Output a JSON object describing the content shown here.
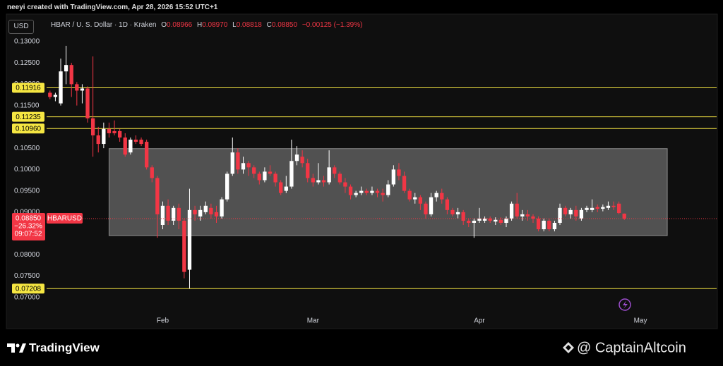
{
  "chart_data": {
    "type": "candlestick",
    "header": "neeyi created with TradingView.com, Apr 28, 2026 15:52 UTC+1",
    "currency": "USD",
    "title": "HBAR / U. S. Dollar · 1D · Kraken",
    "legend": {
      "keys": [
        "O",
        "H",
        "L",
        "C"
      ],
      "open": 0.08966,
      "high": {
        "value": 0.0897,
        "label": "0.08970"
      },
      "low": 0.08818,
      "close": {
        "value": 0.0885,
        "label": "0.08850"
      },
      "change": {
        "value": -0.00125,
        "label": "−0.00125"
      },
      "change_pct": {
        "value": -1.39,
        "label": "(−1.39%)"
      }
    },
    "up_color": "#ffffff",
    "down_color": "#f23645",
    "open": [
      0.118,
      0.117,
      0.1155,
      0.123,
      0.1245,
      0.12,
      0.1185,
      0.119,
      0.112,
      0.108,
      0.106,
      0.1095,
      0.109,
      0.109,
      0.1075,
      0.104,
      0.107,
      0.107,
      0.1065,
      0.1005,
      0.098,
      0.087,
      0.0915,
      0.088,
      0.091,
      0.088,
      0.0765,
      0.0905,
      0.089,
      0.09,
      0.091,
      0.09,
      0.089,
      0.093,
      0.099,
      0.104,
      0.1,
      0.1015,
      0.1005,
      0.099,
      0.0975,
      0.0995,
      0.099,
      0.097,
      0.095,
      0.096,
      0.102,
      0.103,
      0.1015,
      0.098,
      0.097,
      0.0975,
      0.097,
      0.1005,
      0.099,
      0.097,
      0.096,
      0.094,
      0.0945,
      0.095,
      0.0945,
      0.095,
      0.0945,
      0.094,
      0.0965,
      0.1,
      0.0985,
      0.095,
      0.093,
      0.0935,
      0.092,
      0.0895,
      0.0935,
      0.0945,
      0.093,
      0.0905,
      0.0895,
      0.09,
      0.088,
      0.0875,
      0.088,
      0.088,
      0.0885,
      0.0878,
      0.0882,
      0.0875,
      0.0885,
      0.092,
      0.089,
      0.0895,
      0.089,
      0.0885,
      0.086,
      0.088,
      0.086,
      0.0875,
      0.091,
      0.0895,
      0.0905,
      0.0885,
      0.0905,
      0.0905,
      0.0912,
      0.0908,
      0.091,
      0.0915,
      0.092,
      0.08966
    ],
    "high": [
      0.1185,
      0.118,
      0.126,
      0.129,
      0.125,
      0.1205,
      0.12,
      0.1195,
      0.1265,
      0.11,
      0.111,
      0.111,
      0.1115,
      0.1095,
      0.1085,
      0.1075,
      0.108,
      0.1075,
      0.107,
      0.101,
      0.0985,
      0.0925,
      0.093,
      0.0915,
      0.092,
      0.0885,
      0.0955,
      0.0915,
      0.0915,
      0.0925,
      0.092,
      0.0915,
      0.0935,
      0.0995,
      0.1075,
      0.105,
      0.103,
      0.102,
      0.101,
      0.0995,
      0.1005,
      0.101,
      0.0995,
      0.0975,
      0.0985,
      0.107,
      0.1055,
      0.1045,
      0.1025,
      0.099,
      0.1015,
      0.0985,
      0.1045,
      0.101,
      0.0995,
      0.098,
      0.0965,
      0.095,
      0.096,
      0.0955,
      0.096,
      0.0955,
      0.0955,
      0.0975,
      0.101,
      0.1015,
      0.0995,
      0.0955,
      0.0945,
      0.094,
      0.0925,
      0.0945,
      0.095,
      0.0955,
      0.0935,
      0.091,
      0.091,
      0.0905,
      0.0885,
      0.0885,
      0.091,
      0.089,
      0.089,
      0.0888,
      0.0888,
      0.089,
      0.0925,
      0.0945,
      0.0905,
      0.0905,
      0.0895,
      0.089,
      0.0885,
      0.0885,
      0.088,
      0.092,
      0.0915,
      0.091,
      0.0915,
      0.091,
      0.0915,
      0.093,
      0.0918,
      0.0918,
      0.0925,
      0.0925,
      0.0925,
      0.0897
    ],
    "low": [
      0.1165,
      0.116,
      0.115,
      0.12,
      0.117,
      0.115,
      0.1155,
      0.111,
      0.103,
      0.104,
      0.105,
      0.1075,
      0.108,
      0.1065,
      0.103,
      0.1035,
      0.106,
      0.1055,
      0.1,
      0.097,
      0.084,
      0.086,
      0.087,
      0.087,
      0.086,
      0.0745,
      0.0721,
      0.088,
      0.088,
      0.0895,
      0.0885,
      0.0875,
      0.0885,
      0.0925,
      0.0985,
      0.099,
      0.099,
      0.0985,
      0.098,
      0.0965,
      0.097,
      0.0985,
      0.096,
      0.094,
      0.0945,
      0.0955,
      0.101,
      0.1005,
      0.097,
      0.096,
      0.0965,
      0.096,
      0.0965,
      0.098,
      0.0965,
      0.0945,
      0.093,
      0.0935,
      0.094,
      0.094,
      0.094,
      0.0935,
      0.0925,
      0.0935,
      0.096,
      0.0975,
      0.0945,
      0.0925,
      0.092,
      0.0905,
      0.0885,
      0.089,
      0.0925,
      0.092,
      0.0895,
      0.089,
      0.0885,
      0.087,
      0.0865,
      0.084,
      0.0875,
      0.0875,
      0.0875,
      0.087,
      0.087,
      0.0865,
      0.088,
      0.0885,
      0.088,
      0.088,
      0.0875,
      0.0855,
      0.0855,
      0.0855,
      0.0855,
      0.087,
      0.089,
      0.0885,
      0.088,
      0.088,
      0.09,
      0.09,
      0.09,
      0.0902,
      0.0905,
      0.0905,
      0.0895,
      0.08818
    ],
    "close": [
      0.117,
      0.1175,
      0.123,
      0.1245,
      0.12,
      0.1185,
      0.119,
      0.112,
      0.108,
      0.106,
      0.1095,
      0.1085,
      0.1085,
      0.1075,
      0.1035,
      0.107,
      0.1065,
      0.106,
      0.1005,
      0.098,
      0.0895,
      0.0915,
      0.088,
      0.091,
      0.088,
      0.076,
      0.0905,
      0.0895,
      0.0905,
      0.0915,
      0.0895,
      0.089,
      0.093,
      0.099,
      0.104,
      0.1,
      0.1015,
      0.1005,
      0.099,
      0.0975,
      0.0995,
      0.099,
      0.097,
      0.0945,
      0.096,
      0.102,
      0.1035,
      0.1015,
      0.098,
      0.097,
      0.0975,
      0.097,
      0.1005,
      0.099,
      0.097,
      0.096,
      0.094,
      0.0945,
      0.095,
      0.0945,
      0.095,
      0.0945,
      0.094,
      0.0965,
      0.1,
      0.0985,
      0.095,
      0.093,
      0.0935,
      0.092,
      0.0895,
      0.0935,
      0.0945,
      0.093,
      0.0905,
      0.0895,
      0.09,
      0.088,
      0.0875,
      0.088,
      0.0885,
      0.0885,
      0.088,
      0.0882,
      0.0875,
      0.0885,
      0.092,
      0.089,
      0.0895,
      0.089,
      0.0885,
      0.086,
      0.088,
      0.086,
      0.0875,
      0.091,
      0.0895,
      0.0905,
      0.089,
      0.0905,
      0.091,
      0.091,
      0.0908,
      0.0912,
      0.0915,
      0.0912,
      0.0898,
      0.0885
    ],
    "xlim": [
      -8,
      124.2
    ],
    "xticks": [
      {
        "value": 21,
        "label": "Feb"
      },
      {
        "value": 49,
        "label": "Mar"
      },
      {
        "value": 80,
        "label": "Apr"
      },
      {
        "value": 110,
        "label": "May"
      }
    ],
    "ylim": [
      0.067,
      0.1318
    ],
    "yticks": [
      {
        "value": 0.07,
        "label": "0.07000"
      },
      {
        "value": 0.075,
        "label": "0.07500"
      },
      {
        "value": 0.08,
        "label": "0.08000"
      },
      {
        "value": 0.085,
        "label": "0.08500"
      },
      {
        "value": 0.09,
        "label": "0.09000"
      },
      {
        "value": 0.095,
        "label": "0.09500"
      },
      {
        "value": 0.1,
        "label": "0.10000"
      },
      {
        "value": 0.105,
        "label": "0.10500"
      },
      {
        "value": 0.11,
        "label": "0.11000"
      },
      {
        "value": 0.115,
        "label": "0.11500"
      },
      {
        "value": 0.12,
        "label": "0.12000"
      },
      {
        "value": 0.125,
        "label": "0.12500"
      },
      {
        "value": 0.13,
        "label": "0.13000"
      }
    ],
    "grid": false,
    "levels": [
      0.11916,
      0.11235,
      {
        "value": 0.1096,
        "label": "0.10960"
      },
      0.07208
    ],
    "level_color": "#f5e642",
    "zone": {
      "top": 0.1049,
      "bottom": 0.0845,
      "start": 11,
      "end": 115
    },
    "last": {
      "price": {
        "value": 0.0885,
        "label": "0.08850"
      },
      "change_pct": {
        "value": -26.32,
        "label": "−26.32%"
      },
      "countdown": "09:07:52",
      "symbol": "HBARUSD"
    },
    "brand": "TradingView",
    "watermark": "@ CaptainAltcoin"
  }
}
